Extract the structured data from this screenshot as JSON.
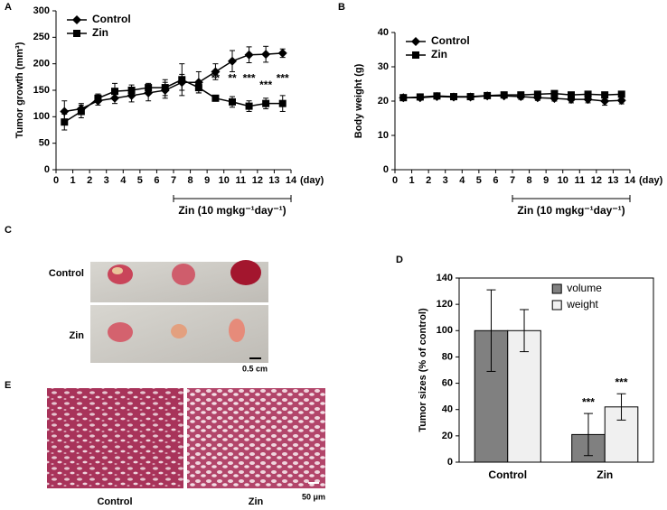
{
  "chart_data": [
    {
      "type": "line",
      "label": "A",
      "ylabel": "Tumor growth (mm³)",
      "xlabel": "(day)",
      "xlim": [
        0,
        14
      ],
      "xticks": [
        0,
        1,
        2,
        3,
        4,
        5,
        6,
        7,
        8,
        9,
        10,
        11,
        12,
        13,
        14
      ],
      "ylim": [
        0,
        300
      ],
      "yticks": [
        0,
        50,
        100,
        150,
        200,
        250,
        300
      ],
      "legend": "upper left",
      "x": [
        0.5,
        1.5,
        2.5,
        3.5,
        4.5,
        5.5,
        6.5,
        7.5,
        8.5,
        9.5,
        10.5,
        11.5,
        12.5,
        13.5
      ],
      "series": [
        {
          "name": "Control",
          "color": "#000000",
          "marker": "diamond",
          "values": [
            110,
            115,
            130,
            135,
            140,
            145,
            150,
            165,
            165,
            185,
            205,
            217,
            218,
            220
          ],
          "errors": [
            20,
            10,
            8,
            10,
            12,
            15,
            15,
            15,
            20,
            15,
            20,
            15,
            15,
            8
          ]
        },
        {
          "name": "Zin",
          "color": "#000000",
          "marker": "square",
          "values": [
            90,
            110,
            135,
            148,
            150,
            155,
            155,
            170,
            155,
            135,
            128,
            120,
            125,
            125
          ],
          "errors": [
            15,
            12,
            8,
            15,
            10,
            8,
            15,
            30,
            10,
            5,
            10,
            10,
            10,
            15
          ]
        }
      ],
      "annotations": [
        {
          "text": "**",
          "x": 9.5,
          "y": 158
        },
        {
          "text": "**",
          "x": 10.5,
          "y": 158
        },
        {
          "text": "***",
          "x": 11.5,
          "y": 158
        },
        {
          "text": "***",
          "x": 12.5,
          "y": 145
        },
        {
          "text": "***",
          "x": 13.5,
          "y": 158
        }
      ],
      "treatment": {
        "label": "Zin (10 mgkg⁻¹day⁻¹)",
        "start": 7,
        "end": 14
      }
    },
    {
      "type": "line",
      "label": "B",
      "ylabel": "Body weight (g)",
      "xlabel": "(day)",
      "xlim": [
        0,
        14
      ],
      "xticks": [
        0,
        1,
        2,
        3,
        4,
        5,
        6,
        7,
        8,
        9,
        10,
        11,
        12,
        13,
        14
      ],
      "ylim": [
        0,
        40
      ],
      "yticks": [
        0,
        10,
        20,
        30,
        40
      ],
      "legend": "upper left",
      "x": [
        0.5,
        1.5,
        2.5,
        3.5,
        4.5,
        5.5,
        6.5,
        7.5,
        8.5,
        9.5,
        10.5,
        11.5,
        12.5,
        13.5
      ],
      "series": [
        {
          "name": "Control",
          "color": "#000000",
          "marker": "diamond",
          "values": [
            21,
            21,
            21.3,
            21.2,
            21.2,
            21.5,
            21.5,
            21.3,
            21,
            20.8,
            20.5,
            20.5,
            20,
            20.2
          ],
          "errors": [
            0.5,
            0.5,
            0.5,
            0.5,
            0.5,
            0.5,
            0.6,
            0.8,
            0.8,
            0.8,
            1,
            1,
            1.2,
            1
          ]
        },
        {
          "name": "Zin",
          "color": "#000000",
          "marker": "square",
          "values": [
            21,
            21.2,
            21.5,
            21.3,
            21.3,
            21.6,
            21.8,
            21.8,
            22,
            22.2,
            21.8,
            22,
            21.8,
            22
          ],
          "errors": [
            0.5,
            0.5,
            0.5,
            0.5,
            0.5,
            0.5,
            0.6,
            0.6,
            0.6,
            0.6,
            0.6,
            0.6,
            0.6,
            0.6
          ]
        }
      ],
      "treatment": {
        "label": "Zin (10 mgkg⁻¹day⁻¹)",
        "start": 7,
        "end": 14
      }
    },
    {
      "type": "bar",
      "label": "D",
      "ylabel": "Tumor sizes (% of control)",
      "categories": [
        "Control",
        "Zin"
      ],
      "ylim": [
        0,
        140
      ],
      "yticks": [
        0,
        20,
        40,
        60,
        80,
        100,
        120,
        140
      ],
      "legend": "upper right",
      "series": [
        {
          "name": "volume",
          "color": "#808080",
          "values": [
            100,
            21
          ],
          "errors": [
            31,
            16
          ]
        },
        {
          "name": "weight",
          "color": "#f0f0f0",
          "values": [
            100,
            42
          ],
          "errors": [
            16,
            10
          ]
        }
      ],
      "annotations": [
        {
          "text": "***",
          "series": 0,
          "category": 1
        },
        {
          "text": "***",
          "series": 1,
          "category": 1
        }
      ]
    }
  ],
  "photos": {
    "c": {
      "label": "C",
      "rows": [
        "Control",
        "Zin"
      ],
      "scale": "0.5 cm"
    },
    "e": {
      "label": "E",
      "columns": [
        "Control",
        "Zin"
      ],
      "scale": "50 μm"
    }
  }
}
